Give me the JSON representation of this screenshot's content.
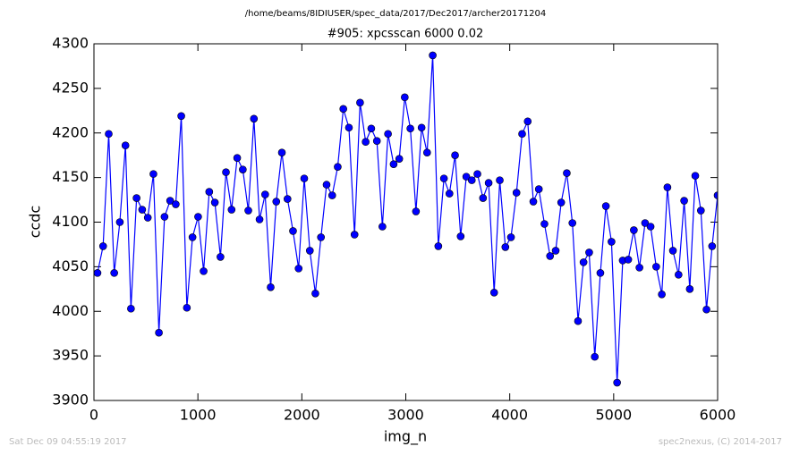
{
  "chart_data": {
    "type": "line",
    "supertitle": "/home/beams/8IDIUSER/spec_data/2017/Dec2017/archer20171204",
    "title": "#905: xpcsscan 6000 0.02",
    "x_label": "img_n",
    "y_label": "ccdc",
    "footer_left": "Sat Dec 09 04:55:19 2017",
    "footer_right": "spec2nexus, (C) 2014-2017",
    "color": "#0000ff",
    "marker": true,
    "xlim": [
      0,
      6000
    ],
    "ylim": [
      3900,
      4300
    ],
    "xticks": [
      0,
      1000,
      2000,
      3000,
      4000,
      5000,
      6000
    ],
    "yticks": [
      3900,
      3950,
      4000,
      4050,
      4100,
      4150,
      4200,
      4250,
      4300
    ],
    "x": [
      34,
      88,
      142,
      195,
      249,
      303,
      356,
      410,
      464,
      518,
      572,
      625,
      679,
      733,
      787,
      840,
      894,
      948,
      1002,
      1055,
      1109,
      1163,
      1217,
      1270,
      1324,
      1378,
      1432,
      1485,
      1539,
      1593,
      1647,
      1700,
      1754,
      1808,
      1862,
      1915,
      1969,
      2023,
      2077,
      2130,
      2184,
      2238,
      2292,
      2345,
      2399,
      2453,
      2507,
      2560,
      2614,
      2668,
      2722,
      2775,
      2829,
      2883,
      2937,
      2990,
      3044,
      3098,
      3152,
      3205,
      3259,
      3313,
      3367,
      3420,
      3474,
      3528,
      3582,
      3635,
      3689,
      3743,
      3797,
      3850,
      3904,
      3958,
      4012,
      4065,
      4119,
      4173,
      4227,
      4280,
      4334,
      4388,
      4442,
      4495,
      4549,
      4603,
      4657,
      4710,
      4764,
      4818,
      4872,
      4925,
      4979,
      5033,
      5087,
      5140,
      5194,
      5248,
      5302,
      5355,
      5409,
      5463,
      5517,
      5570,
      5624,
      5678,
      5732,
      5785,
      5839,
      5893,
      5947,
      6000
    ],
    "values": [
      4043,
      4073,
      4199,
      4043,
      4100,
      4186,
      4003,
      4127,
      4114,
      4105,
      4154,
      3976,
      4106,
      4124,
      4120,
      4219,
      4004,
      4083,
      4106,
      4045,
      4134,
      4122,
      4061,
      4156,
      4114,
      4172,
      4159,
      4113,
      4216,
      4103,
      4131,
      4027,
      4123,
      4178,
      4126,
      4090,
      4048,
      4149,
      4068,
      4020,
      4083,
      4142,
      4130,
      4162,
      4227,
      4206,
      4086,
      4234,
      4190,
      4205,
      4191,
      4095,
      4199,
      4165,
      4171,
      4240,
      4205,
      4112,
      4206,
      4178,
      4287,
      4073,
      4149,
      4132,
      4175,
      4084,
      4151,
      4147,
      4154,
      4127,
      4144,
      4021,
      4147,
      4072,
      4083,
      4133,
      4199,
      4213,
      4123,
      4137,
      4098,
      4062,
      4068,
      4122,
      4155,
      4099,
      3989,
      4055,
      4066,
      3949,
      4043,
      4118,
      4078,
      3920,
      4057,
      4058,
      4091,
      4049,
      4099,
      4095,
      4050,
      4019,
      4139,
      4068,
      4041,
      4124,
      4025,
      4152,
      4113,
      4002,
      4073,
      4130
    ]
  }
}
